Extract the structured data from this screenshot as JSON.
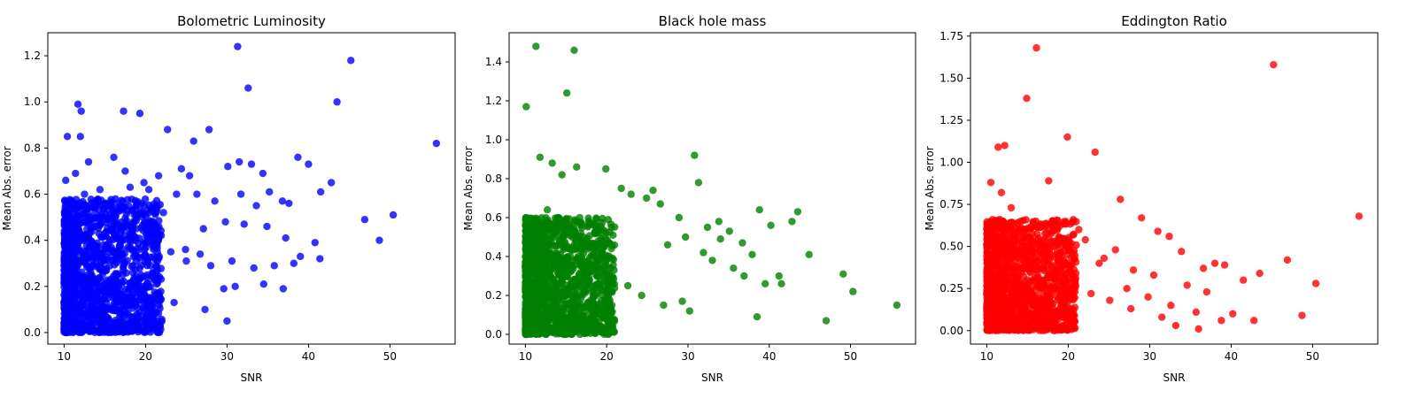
{
  "chart_data": [
    {
      "type": "scatter",
      "title": "Bolometric Luminosity",
      "xlabel": "SNR",
      "ylabel": "Mean Abs. error",
      "color": "#0000ff",
      "xlim": [
        8,
        58
      ],
      "ylim": [
        -0.05,
        1.3
      ],
      "xticks": [
        10,
        20,
        30,
        40,
        50
      ],
      "yticks": [
        0.0,
        0.2,
        0.4,
        0.6,
        0.8,
        1.0,
        1.2
      ],
      "ytick_labels": [
        "0.0",
        "0.2",
        "0.4",
        "0.6",
        "0.8",
        "1.0",
        "1.2"
      ],
      "grid": false,
      "x": [
        31.3,
        45.2,
        32.6,
        43.5,
        11.7,
        12.1,
        17.3,
        19.3,
        10.4,
        12.0,
        27.8,
        22.7,
        25.9,
        55.7,
        38.7,
        40.0,
        16.1,
        31.5,
        33.0,
        17.5,
        19.8,
        21.6,
        24.4,
        25.4,
        30.1,
        34.4,
        42.8,
        10.2,
        11.4,
        13.0,
        14.4,
        18.1,
        20.4,
        23.8,
        26.3,
        28.5,
        31.7,
        35.2,
        37.6,
        41.5,
        12.5,
        15.1,
        22.2,
        33.6,
        36.8,
        46.9,
        50.4,
        48.7,
        20.9,
        27.1,
        29.8,
        32.1,
        34.9,
        37.2,
        39.0,
        40.8,
        24.9,
        26.7,
        18.7,
        21.0,
        23.1,
        25.0,
        28.0,
        30.6,
        33.3,
        35.8,
        38.2,
        41.4,
        29.6,
        31.0,
        34.5,
        36.9,
        30.0,
        27.3,
        23.5,
        20.1,
        17.0,
        14.9,
        13.4,
        12.2,
        11.0
      ],
      "y": [
        1.24,
        1.18,
        1.06,
        1.0,
        0.99,
        0.96,
        0.96,
        0.95,
        0.85,
        0.85,
        0.88,
        0.88,
        0.83,
        0.82,
        0.76,
        0.73,
        0.76,
        0.74,
        0.73,
        0.7,
        0.65,
        0.68,
        0.71,
        0.68,
        0.72,
        0.69,
        0.65,
        0.66,
        0.69,
        0.74,
        0.62,
        0.63,
        0.62,
        0.6,
        0.6,
        0.57,
        0.6,
        0.61,
        0.56,
        0.61,
        0.6,
        0.56,
        0.52,
        0.55,
        0.57,
        0.49,
        0.51,
        0.4,
        0.47,
        0.45,
        0.48,
        0.47,
        0.46,
        0.41,
        0.33,
        0.39,
        0.36,
        0.34,
        0.4,
        0.37,
        0.35,
        0.31,
        0.29,
        0.31,
        0.28,
        0.29,
        0.3,
        0.32,
        0.19,
        0.2,
        0.21,
        0.19,
        0.05,
        0.1,
        0.13,
        0.07,
        0.16,
        0.18,
        0.22,
        0.08,
        0.03
      ],
      "dense_cloud": {
        "count": 1400,
        "x_range": [
          10,
          22
        ],
        "y_range": [
          0.0,
          0.58
        ]
      }
    },
    {
      "type": "scatter",
      "title": "Black hole mass",
      "xlabel": "SNR",
      "ylabel": "Mean Abs. error",
      "color": "#008000",
      "xlim": [
        8,
        58
      ],
      "ylim": [
        -0.05,
        1.55
      ],
      "xticks": [
        10,
        20,
        30,
        40,
        50
      ],
      "yticks": [
        0.0,
        0.2,
        0.4,
        0.6,
        0.8,
        1.0,
        1.2,
        1.4
      ],
      "ytick_labels": [
        "0.0",
        "0.2",
        "0.4",
        "0.6",
        "0.8",
        "1.0",
        "1.2",
        "1.4"
      ],
      "grid": false,
      "x": [
        11.3,
        16.0,
        15.1,
        10.1,
        30.8,
        11.8,
        13.3,
        16.3,
        19.9,
        14.5,
        25.7,
        31.3,
        38.8,
        43.5,
        42.8,
        40.2,
        44.9,
        49.1,
        50.3,
        41.2,
        55.7,
        21.8,
        23.0,
        24.9,
        26.6,
        28.9,
        32.4,
        33.8,
        35.1,
        36.7,
        34.0,
        37.9,
        29.7,
        27.5,
        31.9,
        33.0,
        35.6,
        36.9,
        39.5,
        41.5,
        47.0,
        38.5,
        30.2,
        29.3,
        27.0,
        24.3,
        22.6,
        20.9,
        18.8,
        17.6,
        16.8,
        14.0,
        12.7
      ],
      "y": [
        1.48,
        1.46,
        1.24,
        1.17,
        0.92,
        0.91,
        0.88,
        0.86,
        0.85,
        0.82,
        0.74,
        0.78,
        0.64,
        0.63,
        0.58,
        0.56,
        0.41,
        0.31,
        0.22,
        0.3,
        0.15,
        0.75,
        0.72,
        0.7,
        0.67,
        0.6,
        0.55,
        0.58,
        0.53,
        0.47,
        0.49,
        0.41,
        0.5,
        0.46,
        0.42,
        0.38,
        0.34,
        0.3,
        0.26,
        0.26,
        0.07,
        0.09,
        0.12,
        0.17,
        0.15,
        0.2,
        0.25,
        0.33,
        0.38,
        0.45,
        0.52,
        0.6,
        0.64
      ],
      "dense_cloud": {
        "count": 1400,
        "x_range": [
          10,
          21
        ],
        "y_range": [
          0.0,
          0.6
        ]
      }
    },
    {
      "type": "scatter",
      "title": "Eddington Ratio",
      "xlabel": "SNR",
      "ylabel": "Mean Abs. error",
      "color": "#ff0000",
      "xlim": [
        8,
        58
      ],
      "ylim": [
        -0.08,
        1.77
      ],
      "xticks": [
        10,
        20,
        30,
        40,
        50
      ],
      "yticks": [
        0.0,
        0.25,
        0.5,
        0.75,
        1.0,
        1.25,
        1.5,
        1.75
      ],
      "ytick_labels": [
        "0.00",
        "0.25",
        "0.50",
        "0.75",
        "1.00",
        "1.25",
        "1.50",
        "1.75"
      ],
      "grid": false,
      "x": [
        16.1,
        45.2,
        14.9,
        19.9,
        23.3,
        11.4,
        12.2,
        10.5,
        17.6,
        55.7,
        26.4,
        29.0,
        31.0,
        32.4,
        33.9,
        38.0,
        39.2,
        41.5,
        43.5,
        46.9,
        50.4,
        48.7,
        36.6,
        40.2,
        37.0,
        34.6,
        30.5,
        28.0,
        25.8,
        24.4,
        22.1,
        21.3,
        27.2,
        29.8,
        32.6,
        35.7,
        38.8,
        42.8,
        36.0,
        33.2,
        31.5,
        27.7,
        25.1,
        22.8,
        20.6,
        18.2,
        16.6,
        14.3,
        13.0,
        11.8,
        20.2,
        23.8
      ],
      "y": [
        1.68,
        1.58,
        1.38,
        1.15,
        1.06,
        1.09,
        1.1,
        0.88,
        0.89,
        0.68,
        0.78,
        0.67,
        0.59,
        0.56,
        0.47,
        0.4,
        0.39,
        0.3,
        0.34,
        0.42,
        0.28,
        0.09,
        0.37,
        0.1,
        0.23,
        0.27,
        0.33,
        0.36,
        0.48,
        0.43,
        0.54,
        0.6,
        0.25,
        0.2,
        0.15,
        0.11,
        0.06,
        0.06,
        0.01,
        0.03,
        0.08,
        0.13,
        0.18,
        0.22,
        0.26,
        0.33,
        0.46,
        0.58,
        0.73,
        0.82,
        0.5,
        0.4
      ],
      "dense_cloud": {
        "count": 1400,
        "x_range": [
          10,
          21
        ],
        "y_range": [
          0.0,
          0.66
        ]
      }
    }
  ]
}
